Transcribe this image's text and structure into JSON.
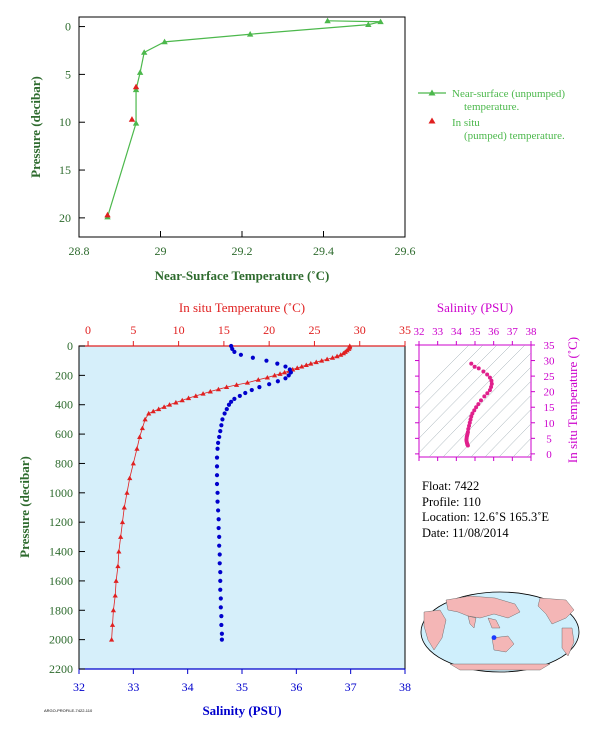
{
  "colors": {
    "near_surface": "#4cb84c",
    "in_situ_temp": "#e02020",
    "salinity": "#0000cc",
    "salinity_axis": "#cc00cc",
    "axis_label": "#2e6b2e",
    "panel_bg": "#d6effa",
    "land": "#f4b6b6",
    "ocean": "#cfeffc"
  },
  "chart_data": [
    {
      "id": "near_surface",
      "type": "line",
      "xlabel": "Near-Surface Temperature (˚C)",
      "ylabel": "Pressure (decibar)",
      "xlim": [
        28.8,
        29.6
      ],
      "ylim": [
        22,
        -1
      ],
      "xticks": [
        "28.8",
        "29",
        "29.2",
        "29.4",
        "29.6"
      ],
      "yticks": [
        "0",
        "5",
        "10",
        "15",
        "20"
      ],
      "grid": false,
      "legend_placement": "right",
      "legend": [
        "Near-surface (unpumped) temperature.",
        "In situ (pumped) temperature."
      ],
      "series": [
        {
          "name": "Near-surface (unpumped) temperature.",
          "style": "line-triangle",
          "points": [
            [
              29.41,
              -0.6
            ],
            [
              29.54,
              -0.5
            ],
            [
              29.51,
              -0.2
            ],
            [
              29.22,
              0.8
            ],
            [
              29.01,
              1.6
            ],
            [
              28.96,
              2.7
            ],
            [
              28.95,
              4.8
            ],
            [
              28.94,
              6.6
            ],
            [
              28.94,
              10.1
            ],
            [
              28.87,
              19.9
            ]
          ]
        },
        {
          "name": "In situ (pumped) temperature.",
          "style": "triangle",
          "points": [
            [
              28.94,
              6.3
            ],
            [
              28.93,
              9.7
            ],
            [
              28.87,
              19.7
            ]
          ]
        }
      ]
    },
    {
      "id": "profile",
      "type": "scatter",
      "ylabel": "Pressure (decibar)",
      "ylim": [
        2200,
        0
      ],
      "yticks": [
        "0",
        "200",
        "400",
        "600",
        "800",
        "1000",
        "1200",
        "1400",
        "1600",
        "1800",
        "2000",
        "2200"
      ],
      "top_axis": {
        "label": "In situ Temperature (˚C)",
        "lim": [
          -1,
          35
        ],
        "ticks": [
          "0",
          "5",
          "10",
          "15",
          "20",
          "25",
          "30",
          "35"
        ]
      },
      "bottom_axis": {
        "label": "Salinity (PSU)",
        "lim": [
          32,
          38
        ],
        "ticks": [
          "32",
          "33",
          "34",
          "35",
          "36",
          "37",
          "38"
        ]
      },
      "series": [
        {
          "name": "In situ Temperature",
          "axis": "top",
          "points": [
            [
              28.9,
              0
            ],
            [
              28.9,
              10
            ],
            [
              28.8,
              20
            ],
            [
              28.6,
              30
            ],
            [
              28.4,
              40
            ],
            [
              28.2,
              50
            ],
            [
              27.9,
              60
            ],
            [
              27.5,
              70
            ],
            [
              27.0,
              80
            ],
            [
              26.4,
              90
            ],
            [
              25.8,
              100
            ],
            [
              25.2,
              110
            ],
            [
              24.6,
              120
            ],
            [
              24.1,
              130
            ],
            [
              23.6,
              140
            ],
            [
              23.1,
              150
            ],
            [
              22.6,
              160
            ],
            [
              22.2,
              170
            ],
            [
              21.7,
              180
            ],
            [
              21.2,
              190
            ],
            [
              20.6,
              200
            ],
            [
              19.8,
              215
            ],
            [
              18.8,
              230
            ],
            [
              17.6,
              250
            ],
            [
              16.4,
              265
            ],
            [
              15.3,
              280
            ],
            [
              14.4,
              295
            ],
            [
              13.5,
              310
            ],
            [
              12.7,
              325
            ],
            [
              11.9,
              340
            ],
            [
              11.1,
              355
            ],
            [
              10.4,
              370
            ],
            [
              9.7,
              385
            ],
            [
              9.0,
              400
            ],
            [
              8.4,
              415
            ],
            [
              7.8,
              430
            ],
            [
              7.2,
              445
            ],
            [
              6.7,
              460
            ],
            [
              6.3,
              500
            ],
            [
              6.0,
              560
            ],
            [
              5.7,
              620
            ],
            [
              5.4,
              700
            ],
            [
              5.0,
              800
            ],
            [
              4.6,
              900
            ],
            [
              4.3,
              1000
            ],
            [
              4.0,
              1100
            ],
            [
              3.8,
              1200
            ],
            [
              3.6,
              1300
            ],
            [
              3.4,
              1400
            ],
            [
              3.3,
              1500
            ],
            [
              3.1,
              1600
            ],
            [
              3.0,
              1700
            ],
            [
              2.8,
              1800
            ],
            [
              2.7,
              1900
            ],
            [
              2.6,
              2000
            ]
          ]
        },
        {
          "name": "Salinity",
          "axis": "bottom",
          "points": [
            [
              34.8,
              0
            ],
            [
              34.82,
              20
            ],
            [
              34.86,
              40
            ],
            [
              34.98,
              60
            ],
            [
              35.2,
              80
            ],
            [
              35.45,
              100
            ],
            [
              35.65,
              120
            ],
            [
              35.8,
              140
            ],
            [
              35.88,
              160
            ],
            [
              35.9,
              180
            ],
            [
              35.86,
              200
            ],
            [
              35.8,
              220
            ],
            [
              35.66,
              240
            ],
            [
              35.5,
              260
            ],
            [
              35.32,
              280
            ],
            [
              35.18,
              300
            ],
            [
              35.06,
              320
            ],
            [
              34.96,
              340
            ],
            [
              34.86,
              360
            ],
            [
              34.8,
              380
            ],
            [
              34.76,
              400
            ],
            [
              34.72,
              430
            ],
            [
              34.68,
              460
            ],
            [
              34.64,
              500
            ],
            [
              34.62,
              540
            ],
            [
              34.6,
              580
            ],
            [
              34.58,
              620
            ],
            [
              34.56,
              660
            ],
            [
              34.55,
              700
            ],
            [
              34.54,
              760
            ],
            [
              34.54,
              820
            ],
            [
              34.54,
              880
            ],
            [
              34.54,
              940
            ],
            [
              34.55,
              1000
            ],
            [
              34.55,
              1060
            ],
            [
              34.56,
              1120
            ],
            [
              34.57,
              1180
            ],
            [
              34.57,
              1240
            ],
            [
              34.58,
              1300
            ],
            [
              34.58,
              1360
            ],
            [
              34.59,
              1420
            ],
            [
              34.59,
              1480
            ],
            [
              34.6,
              1540
            ],
            [
              34.6,
              1600
            ],
            [
              34.6,
              1660
            ],
            [
              34.61,
              1720
            ],
            [
              34.61,
              1780
            ],
            [
              34.62,
              1840
            ],
            [
              34.62,
              1900
            ],
            [
              34.63,
              1960
            ],
            [
              34.63,
              2000
            ]
          ]
        }
      ]
    },
    {
      "id": "ts",
      "type": "scatter",
      "xlabel": "Salinity (PSU)",
      "ylabel": "In situ Temperature (˚C)",
      "xlim": [
        32,
        38
      ],
      "ylim": [
        -1,
        35
      ],
      "xticks": [
        "32",
        "33",
        "34",
        "35",
        "36",
        "37",
        "38"
      ],
      "yticks": [
        "0",
        "5",
        "10",
        "15",
        "20",
        "25",
        "30",
        "35"
      ],
      "series": [
        {
          "name": "T-S",
          "points": [
            [
              34.8,
              29
            ],
            [
              34.98,
              28
            ],
            [
              35.2,
              27.5
            ],
            [
              35.45,
              26.5
            ],
            [
              35.65,
              25.5
            ],
            [
              35.8,
              24.5
            ],
            [
              35.88,
              23.5
            ],
            [
              35.9,
              22.5
            ],
            [
              35.86,
              21.5
            ],
            [
              35.8,
              20.5
            ],
            [
              35.66,
              19.5
            ],
            [
              35.5,
              18.5
            ],
            [
              35.32,
              17.2
            ],
            [
              35.18,
              16
            ],
            [
              35.06,
              15
            ],
            [
              34.96,
              14
            ],
            [
              34.86,
              13
            ],
            [
              34.8,
              12
            ],
            [
              34.76,
              11
            ],
            [
              34.72,
              10
            ],
            [
              34.68,
              9
            ],
            [
              34.64,
              8
            ],
            [
              34.62,
              7
            ],
            [
              34.6,
              6.5
            ],
            [
              34.58,
              6
            ],
            [
              34.56,
              5.5
            ],
            [
              34.55,
              5
            ],
            [
              34.54,
              4.5
            ],
            [
              34.55,
              4
            ],
            [
              34.57,
              3.5
            ],
            [
              34.59,
              3
            ],
            [
              34.62,
              2.7
            ]
          ]
        }
      ]
    }
  ],
  "float_info": {
    "float": "Float:  7422",
    "profile": "Profile:  110",
    "location": "Location:  12.6˚S  165.3˚E",
    "date": "Date:  11/08/2014"
  },
  "map": {
    "marker_lat": -12.6,
    "marker_lon": 165.3
  },
  "footer": "ARGO-PROFILE-7422-110"
}
